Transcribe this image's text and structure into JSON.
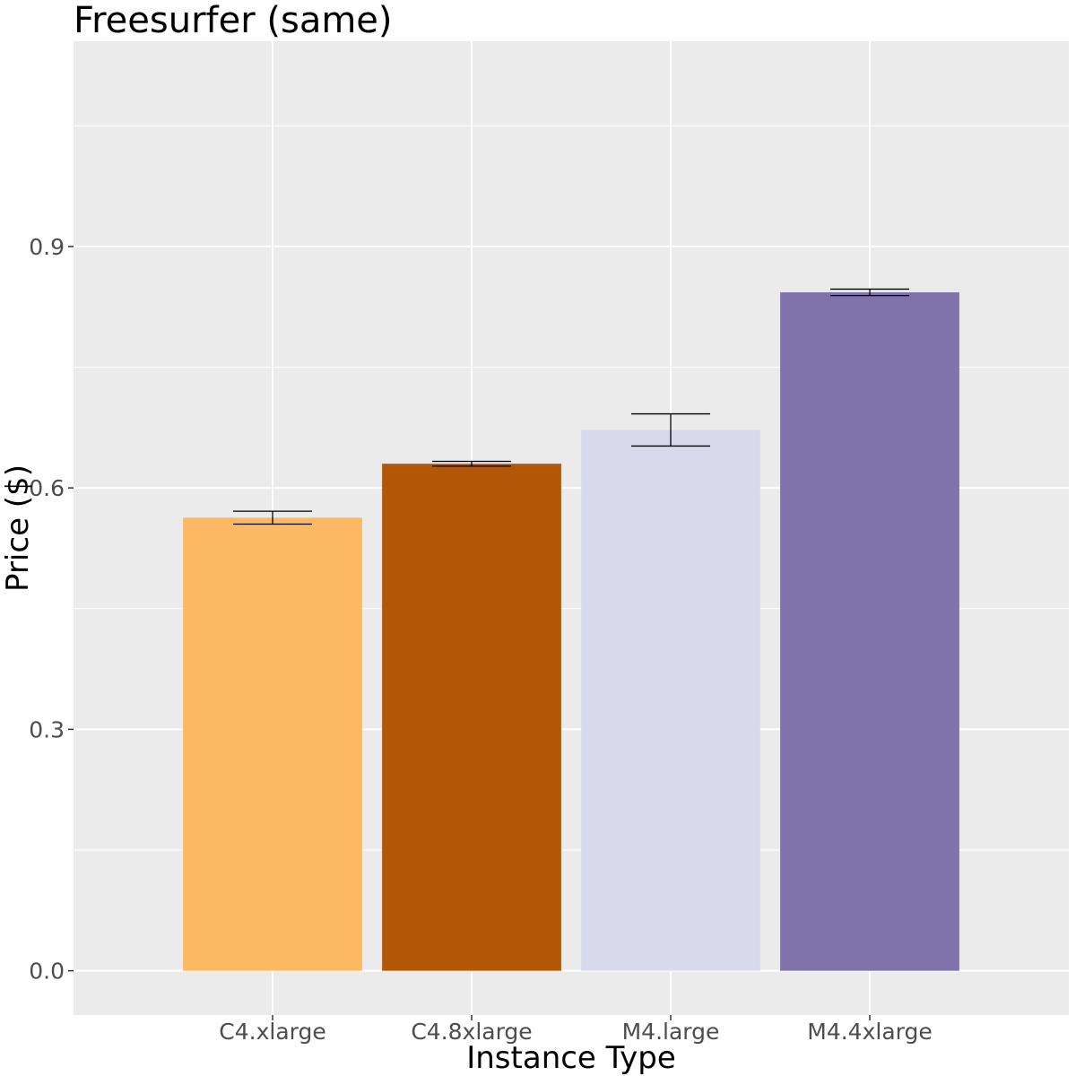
{
  "chart_data": {
    "type": "bar",
    "title": "Freesurfer (same)",
    "xlabel": "Instance Type",
    "ylabel": "Price ($)",
    "categories": [
      "C4.xlarge",
      "C4.8xlarge",
      "M4.large",
      "M4.4xlarge"
    ],
    "values": [
      0.563,
      0.63,
      0.672,
      0.843
    ],
    "error_low": [
      0.555,
      0.627,
      0.652,
      0.839
    ],
    "error_high": [
      0.571,
      0.633,
      0.692,
      0.847
    ],
    "colors": [
      "#fdb863",
      "#b35806",
      "#d8daeb",
      "#8073ac"
    ],
    "ylim": [
      -0.055,
      1.155
    ],
    "y_ticks": [
      0.0,
      0.3,
      0.6,
      0.9
    ],
    "y_tick_labels": [
      "0.0",
      "0.3",
      "0.6",
      "0.9"
    ],
    "grid": true,
    "legend": "none",
    "panel_background": "#ebebeb",
    "grid_color": "#ffffff"
  }
}
